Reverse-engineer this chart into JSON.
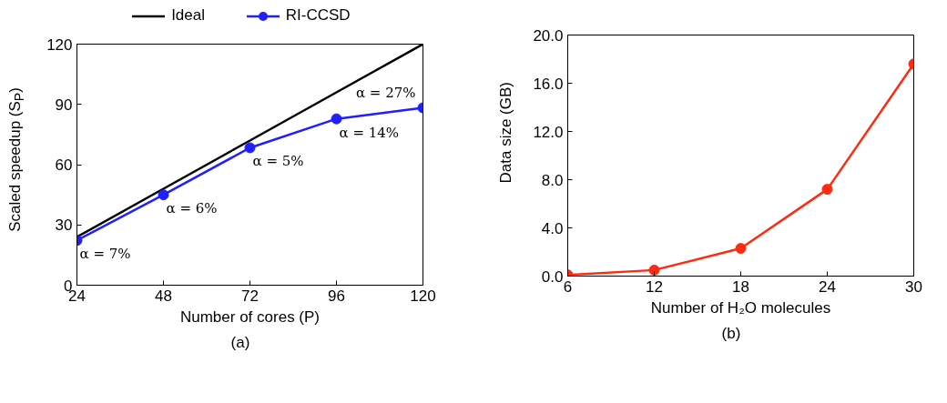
{
  "chart_data": [
    {
      "type": "line",
      "xlabel": "Number of cores (P)",
      "ylabel": "Scaled speedup (S$_{P}$)",
      "x": [
        24,
        48,
        72,
        96,
        120
      ],
      "series": [
        {
          "name": "Ideal",
          "color": "#000000",
          "values": [
            24,
            48,
            72,
            96,
            120
          ],
          "marker": "none"
        },
        {
          "name": "RI-CCSD",
          "color": "#1f1fff",
          "values": [
            22.3,
            45,
            68.4,
            82.8,
            88.3
          ],
          "marker": "circle"
        }
      ],
      "xlim": [
        24,
        120
      ],
      "xticks": [
        24,
        48,
        72,
        96,
        120
      ],
      "ylim": [
        0,
        120
      ],
      "yticks": [
        0,
        30,
        60,
        90,
        120
      ],
      "grid": false,
      "legend": "top",
      "line_style": "solid",
      "annotations": [
        {
          "text": "α = 7%",
          "x": 24,
          "y": 22.3
        },
        {
          "text": "α = 6%",
          "x": 48,
          "y": 45
        },
        {
          "text": "α = 5%",
          "x": 72,
          "y": 68.4
        },
        {
          "text": "α = 14%",
          "x": 96,
          "y": 82.8
        },
        {
          "text": "α = 27%",
          "x": 120,
          "y": 88.3
        },
        "(a)"
      ]
    },
    {
      "type": "line",
      "xlabel": "Number of H₂O molecules",
      "ylabel": "Data size (GB)",
      "x": [
        6,
        12,
        18,
        24,
        30
      ],
      "series": [
        {
          "color": "#ff2a10",
          "values": [
            0.1,
            0.5,
            2.3,
            7.2,
            17.6
          ],
          "marker": "circle"
        }
      ],
      "xlim": [
        6,
        30
      ],
      "xticks": [
        6,
        12,
        18,
        24,
        30
      ],
      "ylim": [
        0,
        20
      ],
      "yticks": [
        {
          "value": 0,
          "label": "0.0"
        },
        {
          "value": 4,
          "label": "4.0"
        },
        {
          "value": 8,
          "label": "8.0"
        },
        {
          "value": 12,
          "label": "12.0"
        },
        {
          "value": 16,
          "label": "16.0"
        },
        {
          "value": 20,
          "label": "20.0"
        }
      ],
      "grid": false,
      "legend": false,
      "line_style": "solid",
      "annotations": [
        "(b)"
      ]
    }
  ]
}
